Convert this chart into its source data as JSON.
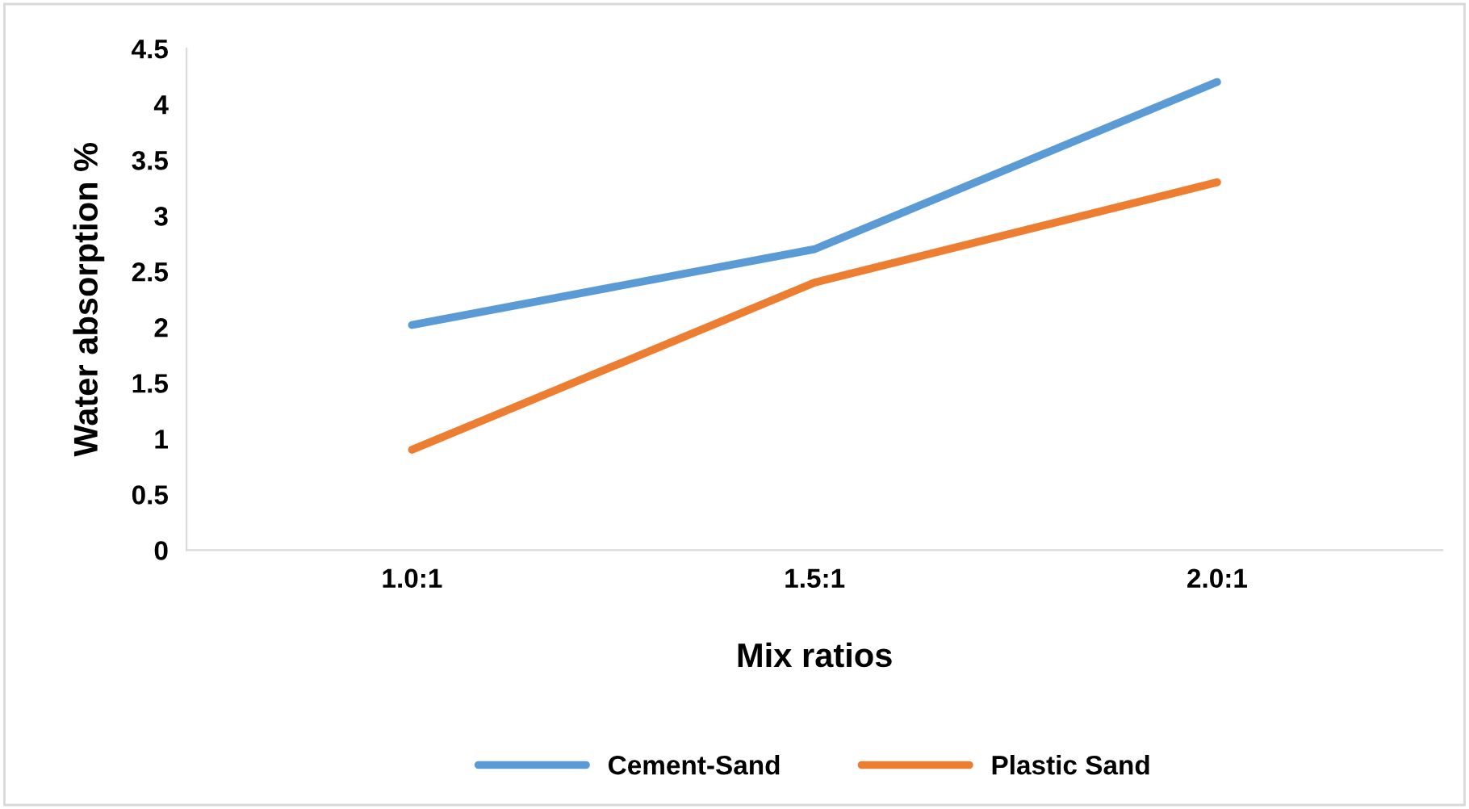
{
  "chart_data": {
    "type": "line",
    "xlabel": "Mix ratios",
    "ylabel": "Water absorption %",
    "categories": [
      "1.0:1",
      "1.5:1",
      "2.0:1"
    ],
    "series": [
      {
        "name": "Cement-Sand",
        "color": "#5b9bd5",
        "values": [
          2.02,
          2.7,
          4.2
        ]
      },
      {
        "name": "Plastic Sand",
        "color": "#ed7d31",
        "values": [
          0.9,
          2.4,
          3.3
        ]
      }
    ],
    "ylim": [
      0,
      4.5
    ],
    "yticks": [
      0,
      0.5,
      1,
      1.5,
      2,
      2.5,
      3,
      3.5,
      4,
      4.5
    ],
    "grid": false,
    "legend": "bottom",
    "marker": "none",
    "line_style": "solid"
  }
}
